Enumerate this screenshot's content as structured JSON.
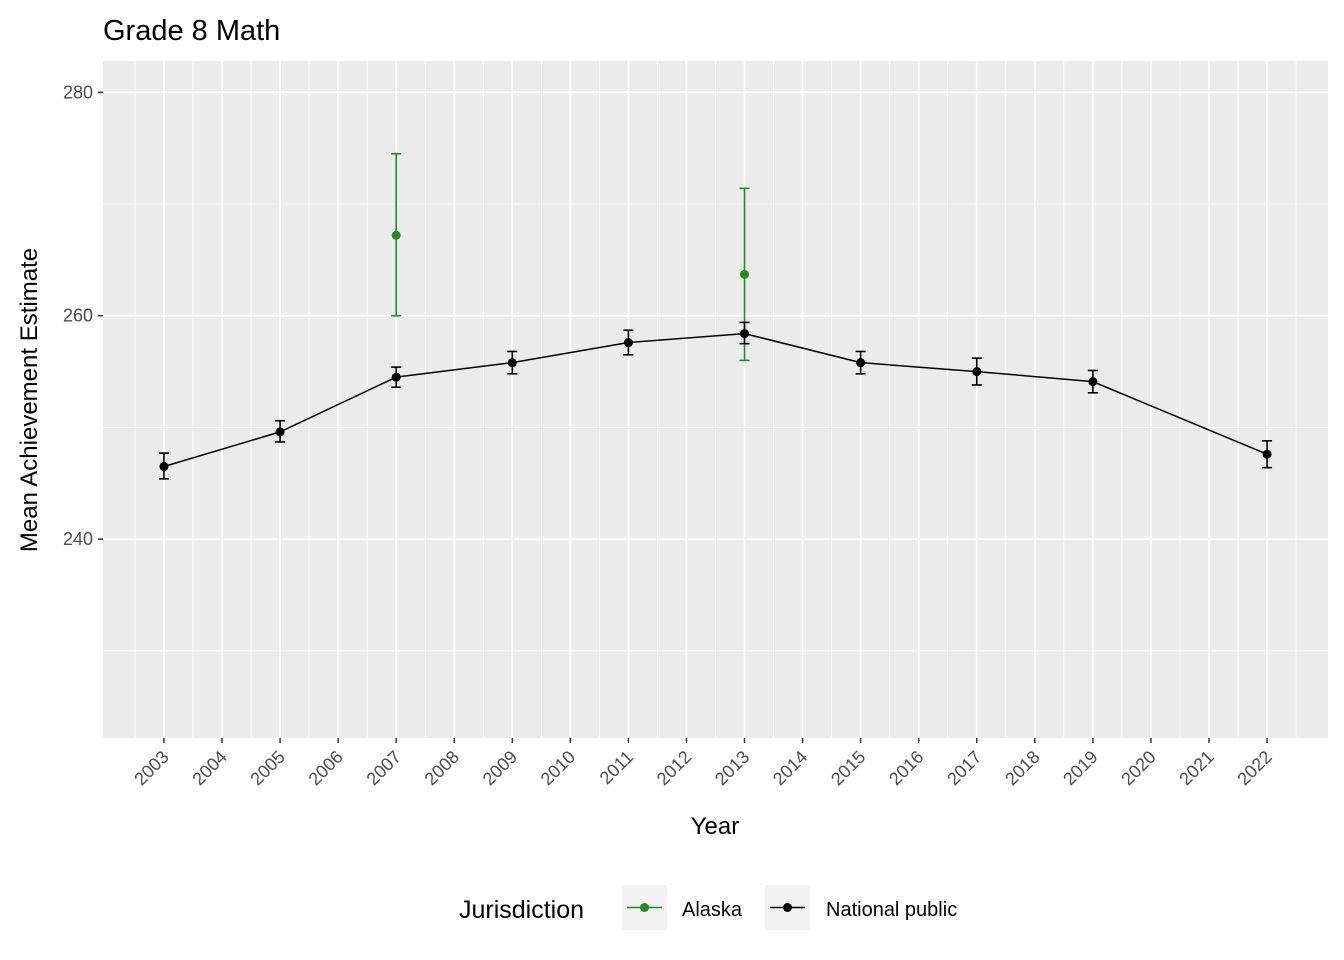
{
  "chart_data": {
    "type": "line",
    "title": "Grade 8 Math",
    "xlabel": "Year",
    "ylabel": "Mean Achievement Estimate",
    "x_ticks": [
      2003,
      2004,
      2005,
      2006,
      2007,
      2008,
      2009,
      2010,
      2011,
      2012,
      2013,
      2014,
      2015,
      2016,
      2017,
      2018,
      2019,
      2020,
      2021,
      2022
    ],
    "y_ticks": [
      240,
      260,
      280
    ],
    "xlim": [
      2001.95,
      2023.05
    ],
    "ylim": [
      222.2,
      282.8
    ],
    "grid": true,
    "legend": {
      "title": "Jurisdiction",
      "position": "bottom",
      "entries": [
        "Alaska",
        "National public"
      ]
    },
    "series": [
      {
        "name": "Alaska",
        "color": "#228B22",
        "connected": false,
        "points": [
          {
            "x": 2007,
            "y": 267.2,
            "lower": 260.0,
            "upper": 274.5
          },
          {
            "x": 2013,
            "y": 263.7,
            "lower": 256.0,
            "upper": 271.4
          }
        ]
      },
      {
        "name": "National public",
        "color": "#000000",
        "connected": true,
        "points": [
          {
            "x": 2003,
            "y": 246.5,
            "lower": 245.4,
            "upper": 247.7
          },
          {
            "x": 2005,
            "y": 249.6,
            "lower": 248.7,
            "upper": 250.6
          },
          {
            "x": 2007,
            "y": 254.5,
            "lower": 253.6,
            "upper": 255.4
          },
          {
            "x": 2009,
            "y": 255.8,
            "lower": 254.8,
            "upper": 256.8
          },
          {
            "x": 2011,
            "y": 257.6,
            "lower": 256.5,
            "upper": 258.7
          },
          {
            "x": 2013,
            "y": 258.4,
            "lower": 257.5,
            "upper": 259.4
          },
          {
            "x": 2015,
            "y": 255.8,
            "lower": 254.8,
            "upper": 256.8
          },
          {
            "x": 2017,
            "y": 255.0,
            "lower": 253.8,
            "upper": 256.2
          },
          {
            "x": 2019,
            "y": 254.1,
            "lower": 253.1,
            "upper": 255.1
          },
          {
            "x": 2022,
            "y": 247.6,
            "lower": 246.4,
            "upper": 248.8
          }
        ]
      }
    ]
  }
}
